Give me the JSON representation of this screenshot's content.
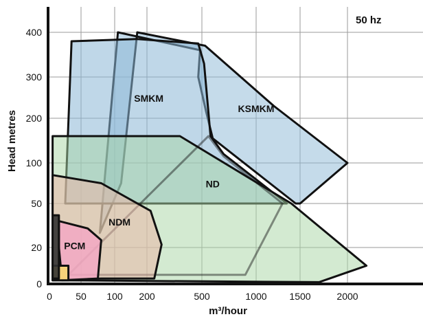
{
  "chart_data": {
    "type": "area",
    "title": "",
    "annotation": "50 hz",
    "xlabel": "m³/hour",
    "ylabel": "Head metres",
    "x_ticks": [
      "0",
      "50",
      "100",
      "200",
      "500",
      "1000",
      "1500",
      "2000"
    ],
    "y_ticks": [
      "0",
      "20",
      "50",
      "100",
      "200",
      "300",
      "400"
    ],
    "grid": true,
    "regions": [
      {
        "name": "KSMKM",
        "color": "#8bb7d6",
        "opacity": 0.5,
        "label": [
          1000,
          215
        ],
        "points": [
          [
            78,
            30
          ],
          [
            120,
            75
          ],
          [
            170,
            400
          ],
          [
            530,
            370
          ],
          [
            1200,
            230
          ],
          [
            2000,
            100
          ],
          [
            1500,
            50
          ],
          [
            1450,
            50
          ],
          [
            600,
            155
          ],
          [
            540,
            215
          ],
          [
            480,
            300
          ],
          [
            490,
            360
          ],
          [
            110,
            400
          ]
        ]
      },
      {
        "name": "SMKM",
        "color": "#8bb7d6",
        "opacity": 0.55,
        "label": [
          210,
          240
        ],
        "points": [
          [
            25,
            50
          ],
          [
            35,
            380
          ],
          [
            170,
            385
          ],
          [
            480,
            375
          ],
          [
            520,
            330
          ],
          [
            580,
            160
          ],
          [
            700,
            120
          ],
          [
            1350,
            50
          ],
          [
            25,
            50
          ]
        ]
      },
      {
        "name": "ND",
        "color": "#a8d5a4",
        "opacity": 0.5,
        "label": [
          600,
          70
        ],
        "points": [
          [
            5,
            3
          ],
          [
            5,
            160
          ],
          [
            380,
            160
          ],
          [
            1400,
            50
          ],
          [
            2200,
            10
          ],
          [
            1700,
            1
          ],
          [
            5,
            2
          ]
        ]
      },
      {
        "name": "ND-inner",
        "color": "#a8d5a4",
        "opacity": 0.0,
        "label": null,
        "points": [
          [
            30,
            5
          ],
          [
            900,
            5
          ],
          [
            1300,
            50
          ],
          [
            700,
            115
          ],
          [
            560,
            160
          ]
        ]
      },
      {
        "name": "NDM",
        "color": "#e9b6a8",
        "opacity": 0.55,
        "label": [
          115,
          35
        ],
        "points": [
          [
            5,
            85
          ],
          [
            80,
            75
          ],
          [
            220,
            45
          ],
          [
            280,
            22
          ],
          [
            240,
            3
          ],
          [
            80,
            3
          ],
          [
            5,
            2
          ]
        ]
      },
      {
        "name": "PCM",
        "color": "#f4a6c4",
        "opacity": 0.8,
        "label": [
          40,
          19
        ],
        "points": [
          [
            15,
            38
          ],
          [
            60,
            33
          ],
          [
            80,
            25
          ],
          [
            75,
            3
          ],
          [
            20,
            2
          ],
          [
            15,
            20
          ]
        ]
      },
      {
        "name": "PCM-small",
        "color": "#f6d27a",
        "opacity": 1.0,
        "label": null,
        "points": [
          [
            5,
            10
          ],
          [
            30,
            10
          ],
          [
            30,
            2
          ],
          [
            5,
            2
          ]
        ]
      },
      {
        "name": "PCM-dark",
        "color": "#333333",
        "opacity": 0.9,
        "label": null,
        "points": [
          [
            5,
            42
          ],
          [
            15,
            42
          ],
          [
            15,
            3
          ],
          [
            5,
            3
          ]
        ]
      }
    ]
  }
}
